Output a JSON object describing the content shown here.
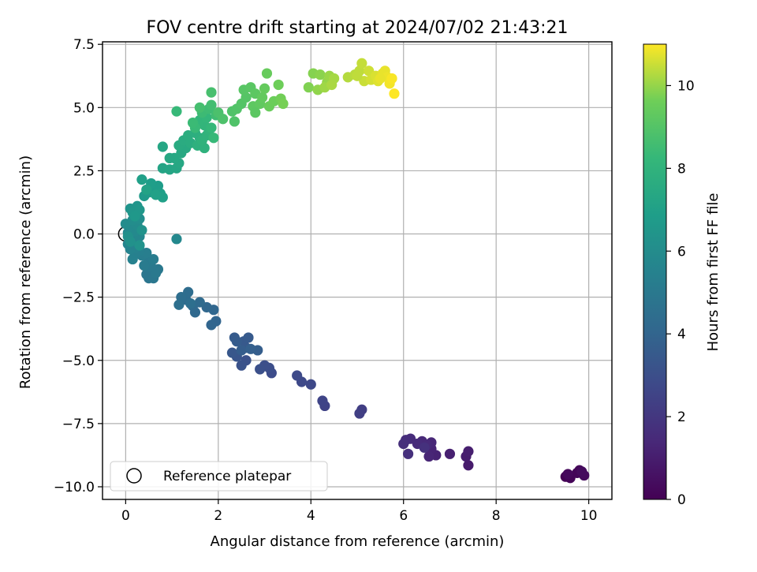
{
  "chart_data": {
    "type": "scatter",
    "title": "FOV centre drift starting at 2024/07/02 21:43:21",
    "xlabel": "Angular distance from reference (arcmin)",
    "ylabel": "Rotation from reference (arcmin)",
    "xlim": [
      -0.5,
      10.5
    ],
    "ylim": [
      -10.5,
      7.6
    ],
    "xticks": [
      0,
      2,
      4,
      6,
      8,
      10
    ],
    "xtick_labels": [
      "0",
      "2",
      "4",
      "6",
      "8",
      "10"
    ],
    "yticks": [
      -10.0,
      -7.5,
      -5.0,
      -2.5,
      0.0,
      2.5,
      5.0,
      7.5
    ],
    "ytick_labels": [
      "−10.0",
      "−7.5",
      "−5.0",
      "−2.5",
      "0.0",
      "2.5",
      "5.0",
      "7.5"
    ],
    "grid": true,
    "legend": {
      "location": "lower-left",
      "entries": [
        {
          "label": "Reference platepar",
          "marker": "open-circle"
        }
      ]
    },
    "reference_point": {
      "x": 0.0,
      "y": 0.0
    },
    "colorbar": {
      "label": "Hours from first FF file",
      "range": [
        0,
        11
      ],
      "ticks": [
        0,
        2,
        4,
        6,
        8,
        10
      ],
      "tick_labels": [
        "0",
        "2",
        "4",
        "6",
        "8",
        "10"
      ],
      "colormap": "viridis"
    },
    "points": [
      [
        9.5,
        -9.6,
        0.0
      ],
      [
        9.6,
        -9.65,
        0.1
      ],
      [
        9.8,
        -9.35,
        0.2
      ],
      [
        9.9,
        -9.55,
        0.3
      ],
      [
        9.75,
        -9.45,
        0.15
      ],
      [
        9.55,
        -9.5,
        0.25
      ],
      [
        9.85,
        -9.4,
        0.35
      ],
      [
        7.4,
        -9.15,
        0.9
      ],
      [
        7.35,
        -8.8,
        1.0
      ],
      [
        7.4,
        -8.6,
        1.05
      ],
      [
        7.0,
        -8.7,
        1.1
      ],
      [
        6.7,
        -8.75,
        1.2
      ],
      [
        6.6,
        -8.5,
        1.25
      ],
      [
        6.55,
        -8.8,
        1.3
      ],
      [
        6.6,
        -8.25,
        1.35
      ],
      [
        6.4,
        -8.2,
        1.4
      ],
      [
        6.5,
        -8.35,
        1.45
      ],
      [
        6.3,
        -8.3,
        1.5
      ],
      [
        6.15,
        -8.1,
        1.55
      ],
      [
        6.05,
        -8.15,
        1.6
      ],
      [
        6.0,
        -8.3,
        1.65
      ],
      [
        6.1,
        -8.7,
        1.7
      ],
      [
        6.45,
        -8.45,
        1.75
      ],
      [
        5.1,
        -6.95,
        2.3
      ],
      [
        5.05,
        -7.1,
        2.35
      ],
      [
        4.3,
        -6.8,
        2.5
      ],
      [
        4.25,
        -6.6,
        2.55
      ],
      [
        4.0,
        -5.95,
        2.7
      ],
      [
        3.8,
        -5.85,
        2.75
      ],
      [
        3.7,
        -5.6,
        2.8
      ],
      [
        3.15,
        -5.5,
        2.9
      ],
      [
        3.1,
        -5.3,
        2.95
      ],
      [
        3.0,
        -5.2,
        3.0
      ],
      [
        2.9,
        -5.35,
        3.05
      ],
      [
        2.6,
        -5.0,
        3.1
      ],
      [
        2.5,
        -5.2,
        3.15
      ],
      [
        2.4,
        -4.85,
        3.3
      ],
      [
        2.3,
        -4.7,
        3.35
      ],
      [
        2.6,
        -4.5,
        3.4
      ],
      [
        2.55,
        -4.25,
        3.45
      ],
      [
        2.65,
        -4.1,
        3.5
      ],
      [
        2.35,
        -4.1,
        3.55
      ],
      [
        2.4,
        -4.25,
        3.6
      ],
      [
        2.5,
        -4.6,
        3.65
      ],
      [
        2.85,
        -4.6,
        3.7
      ],
      [
        2.7,
        -4.55,
        3.75
      ],
      [
        1.95,
        -3.45,
        4.0
      ],
      [
        1.85,
        -3.6,
        4.05
      ],
      [
        1.9,
        -3.0,
        4.1
      ],
      [
        1.75,
        -2.9,
        4.15
      ],
      [
        1.5,
        -3.1,
        4.2
      ],
      [
        1.45,
        -2.85,
        4.25
      ],
      [
        1.6,
        -2.7,
        4.3
      ],
      [
        1.3,
        -2.6,
        4.35
      ],
      [
        1.35,
        -2.3,
        4.4
      ],
      [
        1.2,
        -2.5,
        4.45
      ],
      [
        1.4,
        -2.75,
        4.5
      ],
      [
        1.15,
        -2.8,
        4.55
      ],
      [
        0.5,
        -1.75,
        4.8
      ],
      [
        0.45,
        -1.6,
        4.85
      ],
      [
        0.6,
        -1.75,
        4.9
      ],
      [
        0.7,
        -1.4,
        4.95
      ],
      [
        0.65,
        -1.55,
        5.0
      ],
      [
        0.55,
        -1.3,
        5.05
      ],
      [
        0.5,
        -1.1,
        5.1
      ],
      [
        0.4,
        -1.25,
        5.15
      ],
      [
        0.6,
        -1.0,
        5.2
      ],
      [
        0.35,
        -0.85,
        5.25
      ],
      [
        0.45,
        -0.75,
        5.3
      ],
      [
        0.3,
        -0.65,
        5.35
      ],
      [
        0.2,
        -0.8,
        5.4
      ],
      [
        0.15,
        -1.0,
        5.45
      ],
      [
        0.2,
        -0.55,
        5.5
      ],
      [
        0.1,
        -0.6,
        5.55
      ],
      [
        0.05,
        -0.4,
        5.6
      ],
      [
        0.25,
        -0.35,
        5.65
      ],
      [
        0.15,
        -0.2,
        5.7
      ],
      [
        0.3,
        -0.1,
        5.75
      ],
      [
        0.05,
        0.05,
        5.8
      ],
      [
        0.2,
        0.1,
        5.85
      ],
      [
        0.1,
        0.3,
        5.9
      ],
      [
        0.25,
        0.35,
        5.95
      ],
      [
        0.0,
        0.4,
        6.0
      ],
      [
        0.15,
        0.55,
        6.05
      ],
      [
        0.3,
        0.6,
        6.1
      ],
      [
        0.2,
        0.8,
        6.15
      ],
      [
        0.05,
        -0.1,
        6.2
      ],
      [
        0.1,
        -0.3,
        6.25
      ],
      [
        0.35,
        0.15,
        6.3
      ],
      [
        0.3,
        -0.45,
        6.35
      ],
      [
        1.1,
        -0.2,
        5.8
      ],
      [
        0.1,
        1.0,
        6.4
      ],
      [
        0.25,
        1.1,
        6.45
      ],
      [
        0.15,
        0.85,
        6.5
      ],
      [
        0.3,
        0.95,
        6.55
      ],
      [
        0.2,
        0.7,
        6.6
      ],
      [
        0.4,
        1.5,
        6.7
      ],
      [
        0.5,
        1.65,
        6.75
      ],
      [
        0.6,
        1.8,
        6.8
      ],
      [
        0.7,
        1.9,
        6.85
      ],
      [
        0.55,
        2.0,
        6.9
      ],
      [
        0.75,
        1.6,
        6.95
      ],
      [
        0.8,
        1.45,
        7.0
      ],
      [
        0.35,
        2.15,
        7.0
      ],
      [
        0.65,
        1.55,
        7.05
      ],
      [
        0.45,
        1.75,
        7.1
      ],
      [
        0.8,
        2.6,
        7.2
      ],
      [
        0.95,
        2.55,
        7.25
      ],
      [
        1.1,
        2.6,
        7.3
      ],
      [
        1.15,
        2.8,
        7.35
      ],
      [
        1.05,
        3.0,
        7.4
      ],
      [
        1.2,
        3.2,
        7.45
      ],
      [
        1.3,
        3.4,
        7.5
      ],
      [
        1.15,
        3.5,
        7.55
      ],
      [
        1.25,
        3.7,
        7.6
      ],
      [
        1.4,
        3.6,
        7.65
      ],
      [
        1.35,
        3.9,
        7.7
      ],
      [
        1.5,
        4.0,
        7.75
      ],
      [
        1.6,
        3.8,
        7.8
      ],
      [
        1.55,
        3.5,
        7.85
      ],
      [
        1.7,
        3.4,
        7.9
      ],
      [
        1.65,
        3.7,
        7.95
      ],
      [
        1.75,
        3.9,
        8.0
      ],
      [
        1.8,
        4.1,
        8.05
      ],
      [
        1.7,
        4.3,
        8.1
      ],
      [
        1.6,
        4.5,
        8.15
      ],
      [
        1.75,
        4.6,
        8.2
      ],
      [
        1.85,
        4.2,
        8.25
      ],
      [
        1.9,
        3.8,
        8.3
      ],
      [
        1.5,
        4.2,
        8.35
      ],
      [
        1.45,
        4.4,
        8.4
      ],
      [
        1.65,
        4.8,
        8.45
      ],
      [
        1.8,
        4.95,
        8.5
      ],
      [
        1.95,
        4.7,
        8.55
      ],
      [
        1.85,
        5.1,
        8.6
      ],
      [
        1.6,
        5.0,
        8.65
      ],
      [
        0.8,
        3.45,
        7.3
      ],
      [
        0.95,
        3.0,
        7.35
      ],
      [
        1.1,
        4.85,
        8.3
      ],
      [
        1.85,
        5.6,
        8.7
      ],
      [
        2.0,
        4.8,
        8.8
      ],
      [
        2.1,
        4.55,
        8.85
      ],
      [
        2.3,
        4.85,
        8.9
      ],
      [
        2.4,
        4.95,
        8.95
      ],
      [
        2.5,
        5.15,
        9.0
      ],
      [
        2.6,
        5.4,
        9.05
      ],
      [
        2.55,
        5.7,
        9.1
      ],
      [
        2.7,
        5.8,
        9.15
      ],
      [
        2.8,
        5.55,
        9.2
      ],
      [
        2.75,
        5.05,
        9.25
      ],
      [
        2.9,
        5.15,
        9.3
      ],
      [
        2.95,
        5.4,
        9.35
      ],
      [
        3.0,
        5.75,
        9.4
      ],
      [
        3.05,
        6.35,
        9.45
      ],
      [
        3.1,
        5.05,
        9.5
      ],
      [
        3.2,
        5.25,
        9.55
      ],
      [
        3.3,
        5.9,
        9.6
      ],
      [
        3.35,
        5.35,
        9.65
      ],
      [
        3.4,
        5.15,
        9.7
      ],
      [
        2.35,
        4.45,
        8.9
      ],
      [
        2.8,
        4.8,
        9.2
      ],
      [
        3.95,
        5.8,
        9.8
      ],
      [
        4.05,
        6.35,
        9.85
      ],
      [
        4.2,
        6.3,
        9.9
      ],
      [
        4.15,
        5.7,
        9.95
      ],
      [
        4.35,
        6.0,
        10.0
      ],
      [
        4.4,
        6.25,
        10.05
      ],
      [
        4.3,
        5.8,
        10.1
      ],
      [
        4.5,
        6.15,
        10.15
      ],
      [
        4.45,
        5.9,
        10.2
      ],
      [
        4.8,
        6.2,
        10.3
      ],
      [
        4.95,
        6.3,
        10.35
      ],
      [
        5.05,
        6.45,
        10.4
      ],
      [
        5.1,
        6.75,
        10.45
      ],
      [
        5.15,
        6.05,
        10.5
      ],
      [
        5.25,
        6.45,
        10.55
      ],
      [
        5.3,
        6.1,
        10.6
      ],
      [
        5.4,
        6.25,
        10.65
      ],
      [
        5.45,
        6.05,
        10.7
      ],
      [
        5.55,
        6.35,
        10.75
      ],
      [
        5.6,
        6.45,
        10.8
      ],
      [
        5.65,
        6.2,
        10.85
      ],
      [
        5.7,
        5.95,
        10.9
      ],
      [
        5.75,
        6.15,
        10.95
      ],
      [
        5.8,
        5.55,
        11.0
      ],
      [
        5.5,
        6.15,
        10.8
      ],
      [
        5.0,
        6.25,
        10.4
      ]
    ]
  }
}
